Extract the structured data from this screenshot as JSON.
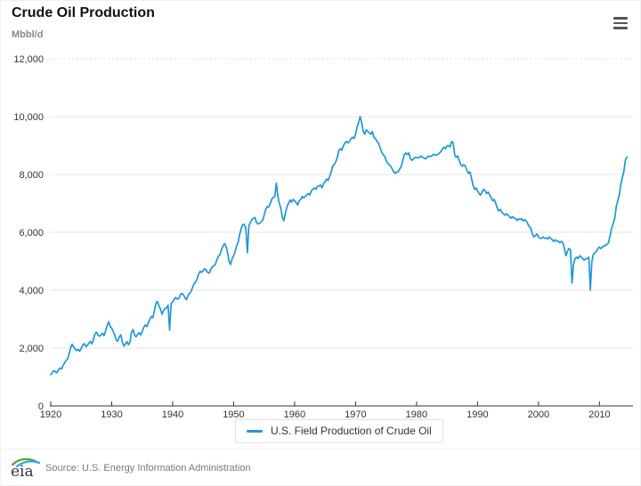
{
  "header": {
    "title": "Crude Oil Production"
  },
  "toolbar": {
    "menu_icon": "hamburger-menu"
  },
  "footer": {
    "logo_text": "eia",
    "source": "Source: U.S. Energy Information Administration"
  },
  "colors": {
    "line": "#1e98d4",
    "grid": "#e6e6e6",
    "grid_top_dashed": "#dcdcdc",
    "axis": "#333333",
    "tick_label": "#333333",
    "logo_green": "#5ba135",
    "logo_blue": "#2aa8e0"
  },
  "chart_data": {
    "type": "line",
    "title": "Crude Oil Production",
    "ylabel": "Mbbl/d",
    "xlabel": "",
    "grid": true,
    "legend_position": "bottom-center",
    "ylim": [
      0,
      12000
    ],
    "xlim": [
      1920,
      2015.5
    ],
    "y_ticks": [
      0,
      2000,
      4000,
      6000,
      8000,
      10000,
      12000
    ],
    "y_tick_labels": [
      "0",
      "2,000",
      "4,000",
      "6,000",
      "8,000",
      "10,000",
      "12,000"
    ],
    "x_ticks": [
      1920,
      1930,
      1940,
      1950,
      1960,
      1970,
      1980,
      1990,
      2000,
      2010
    ],
    "x_tick_labels": [
      "1920",
      "1930",
      "1940",
      "1950",
      "1960",
      "1970",
      "1980",
      "1990",
      "2000",
      "2010"
    ],
    "line_color": "#1e98d4",
    "series": [
      {
        "name": "U.S. Field Production of Crude Oil",
        "units": "Mbbl/d",
        "start_year": 1920,
        "points_per_year": 4,
        "values": [
          1080,
          1150,
          1220,
          1180,
          1140,
          1240,
          1310,
          1270,
          1380,
          1480,
          1570,
          1610,
          1790,
          2000,
          2130,
          2040,
          1970,
          1910,
          1950,
          1890,
          1990,
          2110,
          2150,
          2050,
          2090,
          2170,
          2230,
          2140,
          2290,
          2490,
          2550,
          2440,
          2410,
          2460,
          2510,
          2430,
          2590,
          2770,
          2910,
          2740,
          2690,
          2570,
          2450,
          2270,
          2240,
          2390,
          2460,
          2190,
          2070,
          2140,
          2220,
          2110,
          2210,
          2540,
          2640,
          2440,
          2390,
          2470,
          2530,
          2450,
          2570,
          2710,
          2800,
          2740,
          2870,
          2990,
          3090,
          3050,
          3290,
          3540,
          3610,
          3450,
          3340,
          3170,
          3290,
          3370,
          3390,
          3480,
          2620,
          3560,
          3590,
          3690,
          3750,
          3690,
          3710,
          3830,
          3890,
          3850,
          3740,
          3670,
          3810,
          3890,
          3940,
          4090,
          4220,
          4270,
          4390,
          4550,
          4650,
          4620,
          4680,
          4740,
          4690,
          4610,
          4590,
          4710,
          4810,
          4840,
          4890,
          5050,
          5170,
          5220,
          5390,
          5530,
          5610,
          5510,
          5310,
          4990,
          4890,
          5090,
          5190,
          5340,
          5540,
          5670,
          5940,
          6140,
          6270,
          6270,
          6150,
          5300,
          6240,
          6340,
          6440,
          6490,
          6510,
          6340,
          6290,
          6310,
          6370,
          6410,
          6590,
          6790,
          6890,
          6870,
          6990,
          7140,
          7210,
          7240,
          7700,
          7250,
          7000,
          6820,
          6520,
          6400,
          6680,
          6890,
          7010,
          7120,
          7040,
          7140,
          7090,
          7040,
          6940,
          7090,
          7140,
          7240,
          7190,
          7240,
          7290,
          7340,
          7290,
          7440,
          7490,
          7540,
          7490,
          7590,
          7590,
          7640,
          7540,
          7690,
          7740,
          7840,
          7790,
          7940,
          8090,
          8290,
          8340,
          8440,
          8590,
          8840,
          8890,
          8840,
          8990,
          9090,
          9140,
          9090,
          9140,
          9240,
          9290,
          9240,
          9390,
          9640,
          9790,
          10000,
          9790,
          9490,
          9390,
          9540,
          9490,
          9440,
          9390,
          9490,
          9290,
          9240,
          9140,
          9090,
          8940,
          8790,
          8690,
          8640,
          8490,
          8390,
          8340,
          8290,
          8190,
          8090,
          8040,
          8090,
          8090,
          8190,
          8290,
          8490,
          8690,
          8740,
          8690,
          8740,
          8540,
          8490,
          8540,
          8590,
          8590,
          8570,
          8590,
          8640,
          8590,
          8560,
          8540,
          8590,
          8640,
          8620,
          8640,
          8690,
          8690,
          8670,
          8690,
          8740,
          8790,
          8890,
          8940,
          8890,
          8990,
          9000,
          8950,
          9140,
          9090,
          8690,
          8590,
          8640,
          8490,
          8340,
          8290,
          8340,
          8290,
          8140,
          8040,
          8090,
          7890,
          7640,
          7490,
          7540,
          7440,
          7340,
          7290,
          7390,
          7490,
          7440,
          7340,
          7390,
          7290,
          7190,
          7090,
          7140,
          6990,
          6840,
          6740,
          6790,
          6690,
          6640,
          6590,
          6640,
          6590,
          6540,
          6490,
          6540,
          6490,
          6470,
          6410,
          6470,
          6440,
          6470,
          6390,
          6440,
          6390,
          6290,
          6190,
          6140,
          5940,
          5840,
          5890,
          5940,
          5840,
          5790,
          5790,
          5840,
          5790,
          5810,
          5770,
          5840,
          5790,
          5740,
          5690,
          5740,
          5690,
          5700,
          5640,
          5690,
          5640,
          5440,
          5190,
          5340,
          5440,
          5390,
          4250,
          4890,
          5090,
          5140,
          5090,
          5190,
          5140,
          5090,
          5040,
          5090,
          5090,
          5140,
          4000,
          4990,
          5240,
          5290,
          5340,
          5440,
          5490,
          5440,
          5490,
          5540,
          5540,
          5590,
          5640,
          5890,
          6140,
          6290,
          6490,
          6890,
          7090,
          7290,
          7640,
          7890,
          8090,
          8490,
          8600
        ]
      }
    ]
  }
}
